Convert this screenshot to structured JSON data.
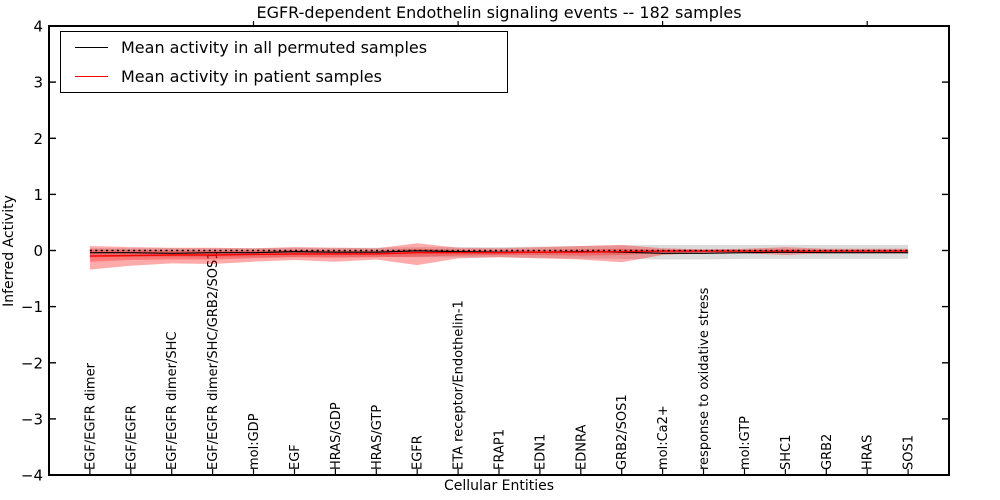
{
  "legend": {
    "items": [
      {
        "label": "Mean activity in all permuted samples",
        "color": "#000000"
      },
      {
        "label": "Mean activity in patient samples",
        "color": "#ff0000"
      }
    ]
  },
  "chart_data": {
    "type": "line",
    "title": "EGFR-dependent Endothelin signaling events -- 182 samples",
    "xlabel": "Cellular Entities",
    "ylabel": "Inferred Activity",
    "ylim": [
      -4,
      4
    ],
    "xlim": [
      -1,
      21
    ],
    "y_tick_labels": [
      "4",
      "3",
      "2",
      "1",
      "0",
      "−1",
      "−2",
      "−3",
      "−4"
    ],
    "top_ticks_at": [
      4,
      9,
      14,
      19
    ],
    "legend_position": "upper left",
    "grid": false,
    "categories": [
      "EGF/EGFR dimer",
      "EGF/EGFR",
      "EGF/EGFR dimer/SHC",
      "EGF/EGFR dimer/SHC/GRB2/SOS1",
      "mol:GDP",
      "EGF",
      "HRAS/GDP",
      "HRAS/GTP",
      "EGFR",
      "ETA receptor/Endothelin-1",
      "FRAP1",
      "EDN1",
      "EDNRA",
      "GRB2/SOS1",
      "mol:Ca2+",
      "response to oxidative stress",
      "mol:GTP",
      "SHC1",
      "GRB2",
      "HRAS",
      "SOS1"
    ],
    "series": [
      {
        "id": "permuted-mean-line",
        "name": "Mean activity in all permuted samples",
        "color": "#000000",
        "width": 1.2,
        "values": [
          -0.04,
          -0.04,
          -0.05,
          -0.04,
          -0.04,
          -0.02,
          -0.03,
          -0.03,
          -0.005,
          -0.02,
          -0.03,
          -0.03,
          -0.02,
          -0.03,
          -0.05,
          -0.05,
          -0.04,
          -0.03,
          -0.04,
          -0.04,
          -0.04
        ]
      },
      {
        "id": "patient-mean-line",
        "name": "Mean activity in patient samples",
        "color": "#ff0000",
        "width": 1.4,
        "values": [
          -0.1,
          -0.09,
          -0.08,
          -0.08,
          -0.07,
          -0.06,
          -0.06,
          -0.06,
          -0.04,
          -0.04,
          -0.04,
          -0.03,
          -0.03,
          -0.02,
          -0.01,
          -0.01,
          -0.01,
          -0.01,
          -0.01,
          -0.01,
          -0.01
        ]
      },
      {
        "id": "zero-reference-line",
        "name": "zero reference",
        "color": "#000000",
        "width": 1.4,
        "dash": "2 3.4",
        "values": [
          0,
          0,
          0,
          0,
          0,
          0,
          0,
          0,
          0,
          0,
          0,
          0,
          0,
          0,
          0,
          0,
          0,
          0,
          0,
          0,
          0
        ]
      }
    ],
    "bands": [
      {
        "id": "permuted-spread-band",
        "color": "#888888",
        "opacity": 0.3,
        "hi": [
          0.04,
          0.04,
          0.04,
          0.04,
          0.04,
          0.05,
          0.05,
          0.05,
          0.06,
          0.06,
          0.06,
          0.07,
          0.08,
          0.09,
          0.1,
          0.1,
          0.1,
          0.1,
          0.1,
          0.1,
          0.1
        ],
        "lo": [
          -0.12,
          -0.12,
          -0.12,
          -0.12,
          -0.12,
          -0.11,
          -0.11,
          -0.11,
          -0.12,
          -0.12,
          -0.12,
          -0.13,
          -0.14,
          -0.15,
          -0.16,
          -0.16,
          -0.15,
          -0.15,
          -0.15,
          -0.15,
          -0.15
        ]
      },
      {
        "id": "patient-spread-outer-band",
        "color": "#ff0000",
        "opacity": 0.33,
        "hi": [
          0.08,
          0.06,
          0.05,
          0.05,
          0.04,
          0.06,
          0.05,
          0.04,
          0.13,
          0.05,
          0.04,
          0.06,
          0.08,
          0.1,
          0.04,
          0.02,
          0.03,
          0.06,
          0.03,
          0.03,
          0.03
        ],
        "lo": [
          -0.34,
          -0.27,
          -0.23,
          -0.24,
          -0.2,
          -0.17,
          -0.2,
          -0.16,
          -0.26,
          -0.14,
          -0.12,
          -0.14,
          -0.16,
          -0.21,
          -0.08,
          -0.04,
          -0.05,
          -0.08,
          -0.05,
          -0.05,
          -0.05
        ]
      },
      {
        "id": "patient-spread-inner-band",
        "color": "#ff0000",
        "opacity": 0.28,
        "hi": [
          0.02,
          0.01,
          0.0,
          0.0,
          0.0,
          0.01,
          0.0,
          0.0,
          0.03,
          0.01,
          0.0,
          0.01,
          0.02,
          0.03,
          0.01,
          0.01,
          0.01,
          0.02,
          0.01,
          0.01,
          0.01
        ],
        "lo": [
          -0.2,
          -0.17,
          -0.16,
          -0.16,
          -0.14,
          -0.12,
          -0.13,
          -0.12,
          -0.11,
          -0.09,
          -0.08,
          -0.08,
          -0.09,
          -0.08,
          -0.04,
          -0.03,
          -0.03,
          -0.04,
          -0.03,
          -0.03,
          -0.03
        ]
      }
    ]
  }
}
